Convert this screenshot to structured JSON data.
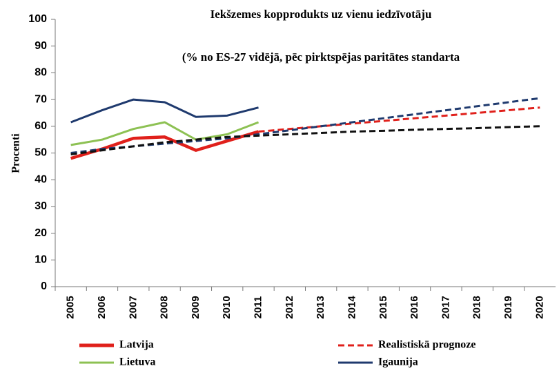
{
  "chart_data": {
    "type": "line",
    "title": "Iekšzemes kopprodukts uz vienu iedzīvotāju",
    "subtitle": "(% no ES-27 vidējā, pēc pirktspējas paritātes standarta",
    "y_label": "Procenti",
    "categories": [
      "2005",
      "2006",
      "2007",
      "2008",
      "2009",
      "2010",
      "2011",
      "2012",
      "2013",
      "2014",
      "2015",
      "2016",
      "2017",
      "2018",
      "2019",
      "2020"
    ],
    "ylim": [
      0,
      100
    ],
    "yticks": [
      0,
      10,
      20,
      30,
      40,
      50,
      60,
      70,
      80,
      90,
      100
    ],
    "series": [
      {
        "name": "Latvija",
        "color": "#e0201b",
        "dash": false,
        "values": [
          48,
          51.5,
          55.5,
          56,
          51,
          54.5,
          58,
          null,
          null,
          null,
          null,
          null,
          null,
          null,
          null,
          null
        ]
      },
      {
        "name": "Realistiskā prognoze",
        "color": "#e0201b",
        "dash": true,
        "values": [
          null,
          null,
          null,
          null,
          null,
          null,
          58,
          59,
          60,
          61,
          62,
          63,
          64,
          65,
          66,
          67
        ]
      },
      {
        "name": "Lietuva",
        "color": "#8dc153",
        "dash": false,
        "values": [
          53,
          55,
          59,
          61.5,
          55,
          57,
          61.5,
          null,
          null,
          null,
          null,
          null,
          null,
          null,
          null,
          null
        ]
      },
      {
        "name": "Igaunija",
        "color": "#1f3a6e",
        "dash": false,
        "values": [
          61.5,
          66,
          70,
          69,
          63.5,
          64,
          67,
          null,
          null,
          null,
          null,
          null,
          null,
          null,
          null,
          null
        ]
      },
      {
        "color": "#1f3a6e",
        "dash": true,
        "values": [
          50,
          51.5,
          52.5,
          53.5,
          54.5,
          55.5,
          57,
          58.5,
          60,
          61.5,
          63,
          64.5,
          66,
          67.5,
          69,
          70.5
        ]
      },
      {
        "color": "#111111",
        "dash": true,
        "values": [
          49.5,
          51,
          52.5,
          54,
          55,
          56,
          56.5,
          57,
          57.5,
          58,
          58.3,
          58.7,
          59,
          59.3,
          59.7,
          60
        ]
      }
    ]
  }
}
